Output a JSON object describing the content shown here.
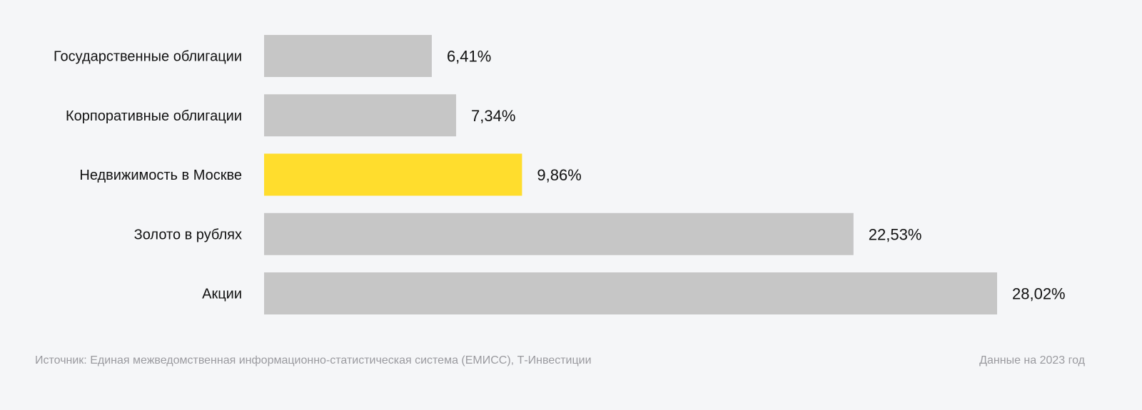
{
  "chart_data": {
    "type": "bar",
    "orientation": "horizontal",
    "categories": [
      "Государственные облигации",
      "Корпоративные облигации",
      "Недвижимость в Москве",
      "Золото в рублях",
      "Акции"
    ],
    "values": [
      6.41,
      7.34,
      9.86,
      22.53,
      28.02
    ],
    "value_labels": [
      "6,41%",
      "7,34%",
      "9,86%",
      "22,53%",
      "28,02%"
    ],
    "highlight_index": 2,
    "colors": {
      "default": "#c6c6c6",
      "highlight": "#ffdd2d"
    },
    "xlim": [
      0,
      28.02
    ],
    "grid": false
  },
  "footer": {
    "source": "Источник: Единая межведомственная информационно-статистическая система (ЕМИСС), Т-Инвестиции",
    "date_note": "Данные на 2023 год"
  }
}
